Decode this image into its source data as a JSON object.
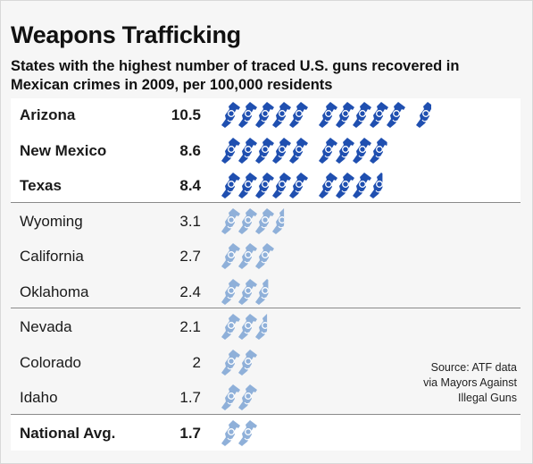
{
  "title": "Weapons Trafficking",
  "subtitle": "States with the highest number of traced U.S. guns recovered in Mexican crimes in 2009, per 100,000 residents",
  "source": [
    "Source: ATF data",
    "via Mayors Against",
    "Illegal Guns"
  ],
  "colors": {
    "dark": "#1f4fb0",
    "light": "#8fb0d9",
    "divider": "#8a8a8a"
  },
  "chart_data": {
    "type": "bar",
    "title": "Weapons Trafficking",
    "subtitle": "States with the highest number of traced U.S. guns recovered in Mexican crimes in 2009, per 100,000 residents",
    "unit_per_icon": 1,
    "categories": [
      "Arizona",
      "New Mexico",
      "Texas",
      "Wyoming",
      "California",
      "Oklahoma",
      "Nevada",
      "Colorado",
      "Idaho",
      "National Avg."
    ],
    "value_labels": [
      "10.5",
      "8.6",
      "8.4",
      "3.1",
      "2.7",
      "2.4",
      "2.1",
      "2",
      "1.7",
      "1.7"
    ],
    "values": [
      10.5,
      8.6,
      8.4,
      3.1,
      2.7,
      2.4,
      2.1,
      2,
      1.7,
      1.7
    ],
    "bold": [
      true,
      true,
      true,
      false,
      false,
      false,
      false,
      false,
      false,
      true
    ],
    "icon_style": [
      "dark",
      "dark",
      "dark",
      "light",
      "light",
      "light",
      "light",
      "light",
      "light",
      "light"
    ]
  }
}
